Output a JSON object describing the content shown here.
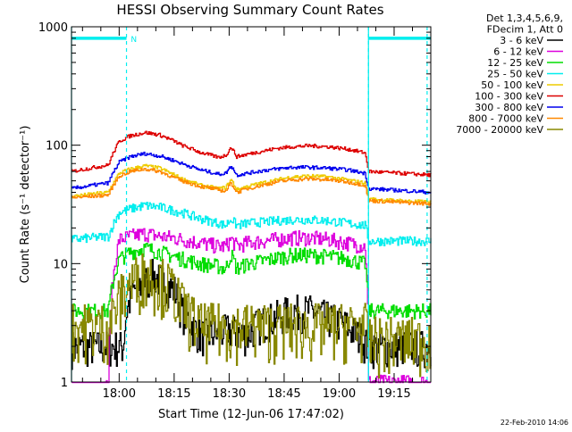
{
  "chart_data": {
    "type": "line",
    "title": "HESSI Observing Summary Count Rates",
    "xlabel": "Start Time (12-Jun-06 17:47:02)",
    "ylabel": "Count Rate (s⁻¹ detector⁻¹)",
    "y_scale": "log",
    "ylim": [
      1,
      1000
    ],
    "x_units": "minutes after 17:47:02",
    "xlim": [
      0,
      98
    ],
    "x_ticks": [
      {
        "label": "18:00",
        "value": 13.0
      },
      {
        "label": "18:15",
        "value": 28.0
      },
      {
        "label": "18:30",
        "value": 43.0
      },
      {
        "label": "18:45",
        "value": 58.0
      },
      {
        "label": "19:00",
        "value": 73.0
      },
      {
        "label": "19:15",
        "value": 88.0
      }
    ],
    "y_ticks": [
      {
        "label": "1",
        "value": 1
      },
      {
        "label": "10",
        "value": 10
      },
      {
        "label": "100",
        "value": 100
      },
      {
        "label": "1000",
        "value": 1000
      }
    ],
    "legend_header": [
      "Det 1,3,4,5,6,9,",
      "FDecim 1, Att 0"
    ],
    "legend_placement": "right",
    "series": [
      {
        "name": "3 - 6 keV",
        "color": "#000000",
        "noise": 0.12,
        "x": [
          0,
          14,
          15,
          17,
          20,
          22,
          25,
          28,
          30,
          33,
          35,
          36,
          40,
          43,
          45,
          48,
          50,
          55,
          60,
          65,
          70,
          75,
          81
        ],
        "y": [
          2,
          2,
          4,
          6,
          7,
          8,
          7,
          6,
          4,
          3,
          2.5,
          2.5,
          2.6,
          2.8,
          2.6,
          2.5,
          3,
          3.5,
          4,
          4,
          3.5,
          3,
          2
        ]
      },
      {
        "name": "6 - 12 keV",
        "color": "#dd00dd",
        "noise": 0.05,
        "x": [
          0,
          10,
          13,
          16,
          20,
          24,
          28,
          30,
          35,
          40,
          42,
          43.5,
          45,
          48,
          52,
          56,
          60,
          65,
          70,
          75,
          80,
          81
        ],
        "y": [
          0,
          1,
          16,
          17,
          18,
          17,
          16.5,
          16,
          15,
          14,
          14,
          16,
          14,
          15,
          15.5,
          16,
          16.5,
          16.5,
          16,
          15,
          14,
          1
        ]
      },
      {
        "name": "12 - 25 keV",
        "color": "#00dd00",
        "noise": 0.05,
        "x": [
          0,
          10,
          13,
          16,
          20,
          24,
          28,
          30,
          35,
          40,
          42,
          43.5,
          45,
          48,
          52,
          56,
          60,
          65,
          70,
          75,
          80,
          81,
          81.5,
          98
        ],
        "y": [
          4,
          4,
          11,
          12.5,
          13.5,
          12.5,
          11.5,
          11,
          10,
          9.5,
          9,
          12,
          9,
          10,
          10.5,
          11.2,
          11.8,
          11.8,
          11.5,
          11,
          10,
          4,
          4,
          4
        ]
      },
      {
        "name": "25 - 50 keV",
        "color": "#00eeee",
        "noise": 0.03,
        "x": [
          0,
          10,
          13,
          16,
          20,
          24,
          28,
          30,
          35,
          40,
          42,
          43.5,
          45,
          48,
          52,
          56,
          60,
          65,
          70,
          75,
          80,
          81,
          98
        ],
        "y": [
          16,
          17,
          27,
          29,
          31,
          30,
          28,
          27,
          24,
          22,
          21,
          24,
          21,
          22,
          22.5,
          23,
          23.5,
          23.5,
          23,
          22,
          21,
          15.5,
          15.5
        ]
      },
      {
        "name": "50 - 100 keV",
        "color": "#eecc00",
        "noise": 0.012,
        "x": [
          0,
          10,
          13,
          16,
          20,
          24,
          28,
          30,
          35,
          40,
          42,
          43.5,
          45,
          48,
          52,
          56,
          60,
          65,
          70,
          75,
          80,
          81,
          98
        ],
        "y": [
          37,
          40,
          58,
          63,
          67,
          64,
          56,
          52,
          46,
          43,
          44,
          51,
          42,
          45,
          48,
          51,
          54,
          55,
          54,
          51,
          48,
          35,
          33
        ]
      },
      {
        "name": "100 - 300 keV",
        "color": "#dd0000",
        "noise": 0.012,
        "x": [
          0,
          10,
          13,
          16,
          20,
          24,
          28,
          30,
          35,
          40,
          42,
          43.5,
          45,
          48,
          52,
          56,
          60,
          65,
          70,
          75,
          80,
          81,
          98
        ],
        "y": [
          60,
          68,
          108,
          120,
          128,
          122,
          108,
          100,
          87,
          79,
          82,
          96,
          80,
          84,
          89,
          94,
          97,
          99,
          97,
          93,
          86,
          60,
          56
        ]
      },
      {
        "name": "300 - 800 keV",
        "color": "#0000ee",
        "noise": 0.012,
        "x": [
          0,
          10,
          13,
          16,
          20,
          24,
          28,
          30,
          35,
          40,
          42,
          43.5,
          45,
          48,
          52,
          56,
          60,
          65,
          70,
          75,
          80,
          81,
          98
        ],
        "y": [
          43,
          48,
          72,
          80,
          85,
          81,
          74,
          70,
          62,
          57,
          58,
          67,
          56,
          58,
          61,
          63,
          65,
          65,
          64,
          62,
          58,
          43,
          40
        ]
      },
      {
        "name": "800 - 7000 keV",
        "color": "#ff8800",
        "noise": 0.012,
        "x": [
          0,
          10,
          13,
          16,
          20,
          24,
          28,
          30,
          35,
          40,
          42,
          43.5,
          45,
          48,
          52,
          56,
          60,
          65,
          70,
          75,
          80,
          81,
          98
        ],
        "y": [
          36,
          38,
          55,
          60,
          63,
          60,
          53,
          50,
          45,
          42,
          41,
          48,
          40,
          43,
          46,
          49,
          51,
          52,
          51,
          49,
          46,
          34,
          32
        ]
      },
      {
        "name": "7000 - 20000 keV",
        "color": "#888800",
        "noise": 0.18,
        "x": [
          0,
          10,
          13,
          16,
          20,
          24,
          28,
          30,
          33,
          35,
          40,
          45,
          50,
          60,
          70,
          80,
          81,
          98
        ],
        "y": [
          3,
          3,
          5,
          7,
          8.5,
          7.5,
          6,
          4.5,
          3.5,
          3,
          3,
          3,
          3,
          3,
          3,
          3,
          2.3,
          2.3
        ]
      }
    ],
    "annotations": {
      "status_bar_color": "#00eeee",
      "status_bar_value": 800,
      "status_bar_segments": [
        [
          0,
          15
        ],
        [
          81,
          98
        ]
      ],
      "status_marker_label": "N",
      "status_marker_x": 17,
      "dashed_lines_x": [
        15,
        81,
        97
      ],
      "solid_lines_x": [
        0,
        81
      ]
    }
  },
  "footer": {
    "date_stamp": "22-Feb-2010 14:06"
  }
}
